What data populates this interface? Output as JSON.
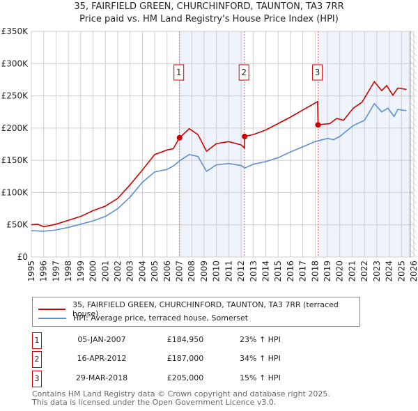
{
  "title": "35, FAIRFIELD GREEN, CHURCHINFORD, TAUNTON, TA3 7RR",
  "subtitle": "Price paid vs. HM Land Registry's House Price Index (HPI)",
  "chart_data": {
    "type": "line",
    "xlim": [
      1995,
      2026
    ],
    "ylim": [
      0,
      350000
    ],
    "y_ticks": [
      {
        "v": 0,
        "label": "£0"
      },
      {
        "v": 50000,
        "label": "£50K"
      },
      {
        "v": 100000,
        "label": "£100K"
      },
      {
        "v": 150000,
        "label": "£150K"
      },
      {
        "v": 200000,
        "label": "£200K"
      },
      {
        "v": 250000,
        "label": "£250K"
      },
      {
        "v": 300000,
        "label": "£300K"
      },
      {
        "v": 350000,
        "label": "£350K"
      }
    ],
    "x_ticks": [
      "1995",
      "1996",
      "1997",
      "1998",
      "1999",
      "2000",
      "2001",
      "2002",
      "2003",
      "2004",
      "2005",
      "2006",
      "2007",
      "2008",
      "2009",
      "2010",
      "2011",
      "2012",
      "2013",
      "2014",
      "2015",
      "2016",
      "2017",
      "2018",
      "2019",
      "2020",
      "2021",
      "2022",
      "2023",
      "2024",
      "2025",
      "2026"
    ],
    "grid": true,
    "shaded_ranges": [
      [
        2007.01,
        2012.29
      ],
      [
        2018.24,
        2025.7
      ]
    ],
    "hatched_from": 2025.7,
    "series": [
      {
        "name": "35, FAIRFIELD GREEN, CHURCHINFORD, TAUNTON, TA3 7RR (terraced house)",
        "color": "#cc0000",
        "x": [
          1995,
          1995.5,
          1996,
          1997,
          1998,
          1999,
          2000,
          2001,
          2002,
          2003,
          2004,
          2005,
          2006,
          2006.5,
          2007.01,
          2007.8,
          2008.5,
          2009.2,
          2010,
          2011,
          2012,
          2012.28,
          2012.29,
          2013,
          2014,
          2015,
          2016,
          2017,
          2018.2,
          2018.24,
          2019.2,
          2019.75,
          2020.3,
          2021.1,
          2021.8,
          2022.8,
          2023.4,
          2023.8,
          2024.3,
          2024.7,
          2025.4
        ],
        "y": [
          50000,
          51000,
          47000,
          51000,
          57000,
          63000,
          72000,
          79000,
          91000,
          112000,
          135000,
          159000,
          166000,
          168000,
          184950,
          199000,
          190000,
          164000,
          176000,
          179000,
          174000,
          169000,
          187000,
          190000,
          197000,
          207000,
          217000,
          228000,
          241000,
          205000,
          207000,
          215000,
          212000,
          231000,
          240000,
          272000,
          258000,
          266000,
          251000,
          262000,
          260000
        ]
      },
      {
        "name": "HPI: Average price, terraced house, Somerset",
        "color": "#5b8fd0",
        "x": [
          1995,
          1996,
          1997,
          1998,
          1999,
          2000,
          2001,
          2002,
          2003,
          2004,
          2005,
          2006,
          2006.5,
          2007,
          2007.8,
          2008.5,
          2009.2,
          2010,
          2011,
          2012,
          2012.3,
          2013,
          2014,
          2015,
          2016,
          2017,
          2018,
          2019,
          2019.5,
          2020,
          2021.1,
          2022,
          2022.8,
          2023.4,
          2023.9,
          2024.4,
          2024.7,
          2025.4
        ],
        "y": [
          41000,
          40000,
          42000,
          46000,
          51000,
          56000,
          63000,
          75000,
          93000,
          116000,
          132000,
          136000,
          141000,
          149000,
          159000,
          156000,
          133000,
          143000,
          145000,
          142000,
          138000,
          144000,
          148000,
          154000,
          163000,
          171000,
          179000,
          184000,
          182000,
          187000,
          204000,
          212000,
          238000,
          225000,
          231000,
          218000,
          229000,
          227000
        ]
      }
    ],
    "sales": [
      {
        "id": "1",
        "x": 2007.01,
        "y": 184950
      },
      {
        "id": "2",
        "x": 2012.29,
        "y": 187000
      },
      {
        "id": "3",
        "x": 2018.24,
        "y": 205000
      }
    ]
  },
  "legend": {
    "red": "35, FAIRFIELD GREEN, CHURCHINFORD, TAUNTON, TA3 7RR (terraced house)",
    "blue": "HPI: Average price, terraced house, Somerset"
  },
  "table": [
    {
      "num": "1",
      "date": "05-JAN-2007",
      "price": "£184,950",
      "hpi": "23% ↑ HPI"
    },
    {
      "num": "2",
      "date": "16-APR-2012",
      "price": "£187,000",
      "hpi": "34% ↑ HPI"
    },
    {
      "num": "3",
      "date": "29-MAR-2018",
      "price": "£205,000",
      "hpi": "15% ↑ HPI"
    }
  ],
  "footer": {
    "line1": "Contains HM Land Registry data © Crown copyright and database right 2025.",
    "line2": "This data is licensed under the Open Government Licence v3.0."
  }
}
